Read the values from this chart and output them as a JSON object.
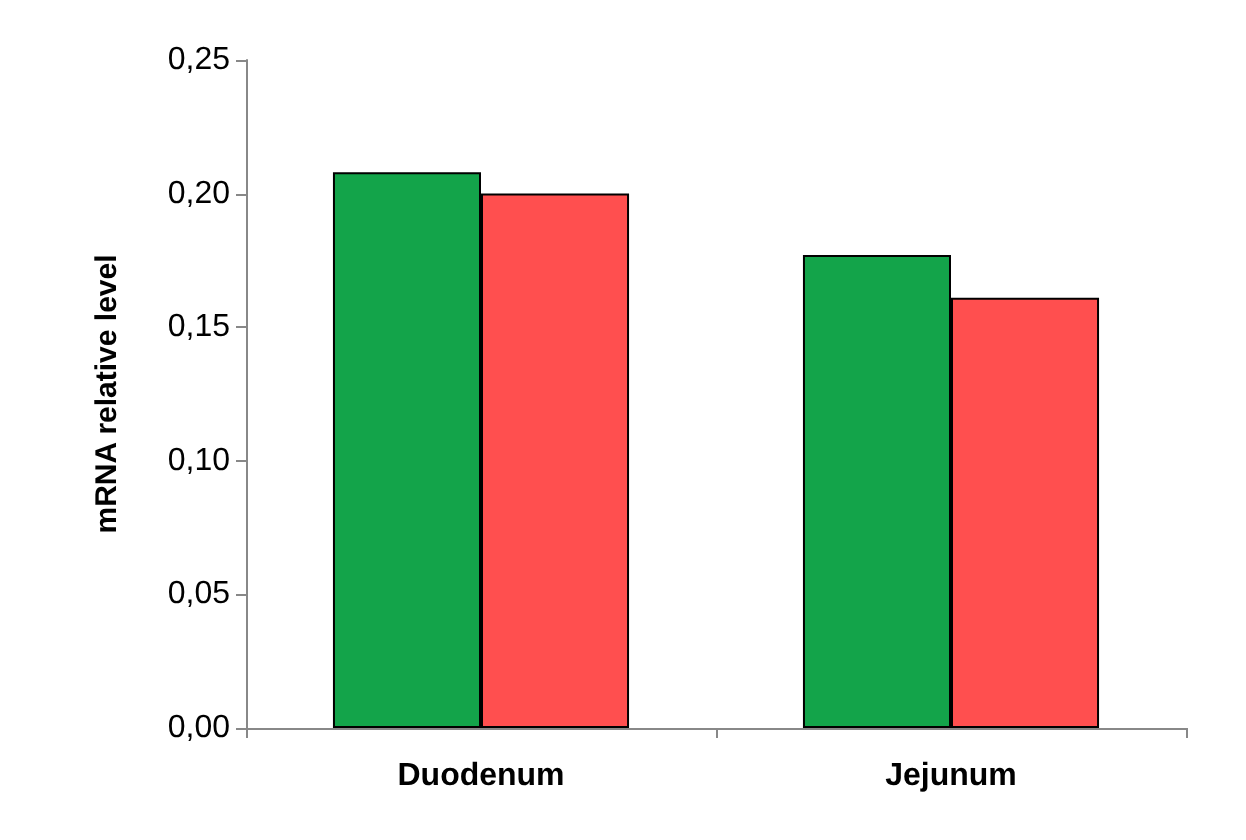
{
  "chart_data": {
    "type": "bar",
    "ylabel": "mRNA relative level",
    "categories": [
      "Duodenum",
      "Jejunum"
    ],
    "series": [
      {
        "color": "#13a44a",
        "values": [
          0.208,
          0.177
        ]
      },
      {
        "color": "#ff4f4f",
        "values": [
          0.2,
          0.161
        ]
      }
    ],
    "ylim": [
      0,
      0.25
    ],
    "yticks": [
      {
        "value": 0,
        "label": "0,00"
      },
      {
        "value": 0.05,
        "label": "0,05"
      },
      {
        "value": 0.1,
        "label": "0,10"
      },
      {
        "value": 0.15,
        "label": "0,15"
      },
      {
        "value": 0.2,
        "label": "0,20"
      },
      {
        "value": 0.25,
        "label": "0,25"
      }
    ],
    "grid": false
  }
}
